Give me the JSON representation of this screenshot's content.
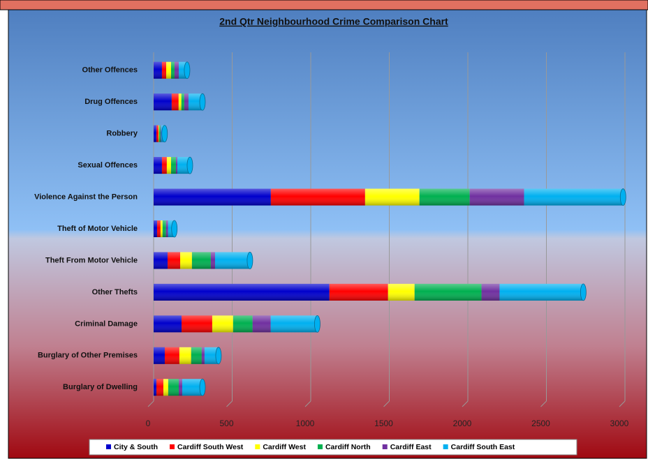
{
  "chart_data": {
    "type": "bar",
    "orientation": "horizontal",
    "stacked": true,
    "title": "2nd Qtr Neighbourhood Crime Comparison Chart",
    "categories": [
      "Other Offences",
      "Drug Offences",
      "Robbery",
      "Sexual Offences",
      "Violence Against the Person",
      "Theft of Motor Vehicle",
      "Theft From Motor Vehicle",
      "Other Thefts",
      "Criminal Damage",
      "Burglary of Other Premises",
      "Burglary of Dwelling"
    ],
    "series": [
      {
        "name": "City & South",
        "color": "#0000cc",
        "values": [
          53,
          115,
          18,
          53,
          746,
          22,
          89,
          1119,
          178,
          71,
          18
        ]
      },
      {
        "name": "Cardiff South West",
        "color": "#ff0000",
        "values": [
          27,
          44,
          13,
          31,
          600,
          22,
          80,
          373,
          195,
          93,
          44
        ]
      },
      {
        "name": "Cardiff West",
        "color": "#ffff00",
        "values": [
          31,
          18,
          4,
          27,
          346,
          13,
          75,
          169,
          133,
          75,
          31
        ]
      },
      {
        "name": "Cardiff North",
        "color": "#00b050",
        "values": [
          22,
          18,
          9,
          31,
          320,
          22,
          120,
          426,
          124,
          67,
          67
        ]
      },
      {
        "name": "Cardiff East",
        "color": "#7030a0",
        "values": [
          27,
          27,
          4,
          9,
          346,
          13,
          27,
          115,
          115,
          18,
          22
        ]
      },
      {
        "name": "Cardiff South East",
        "color": "#00b0f0",
        "values": [
          53,
          89,
          22,
          80,
          630,
          40,
          222,
          533,
          297,
          89,
          129
        ]
      }
    ],
    "xlim": [
      0,
      3000
    ],
    "xticks": [
      0,
      500,
      1000,
      1500,
      2000,
      2500,
      3000
    ],
    "grid": true,
    "legend": "bottom"
  }
}
